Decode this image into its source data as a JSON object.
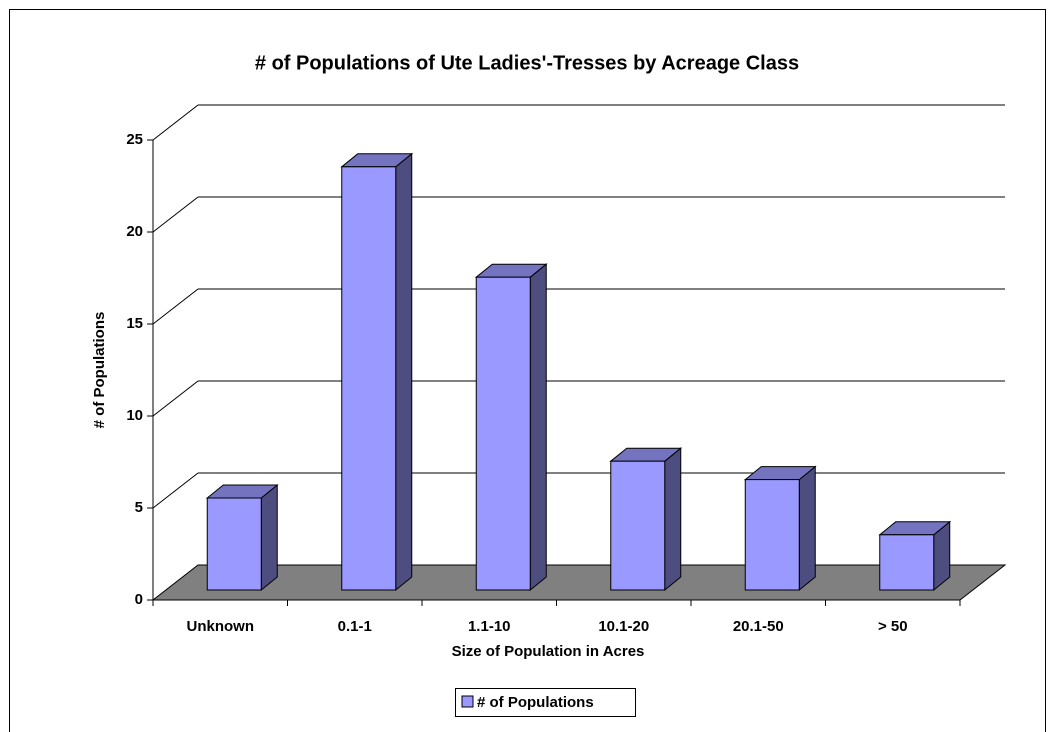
{
  "chart_data": {
    "type": "bar3d",
    "title": "# of Populations of Ute Ladies'-Tresses by Acreage Class",
    "x_label": "Size of Population in Acres",
    "y_label": "# of Populations",
    "categories": [
      "Unknown",
      "0.1-1",
      "1.1-10",
      "10.1-20",
      "20.1-50",
      "> 50"
    ],
    "series": [
      {
        "name": "# of Populations",
        "color": "#9999ff",
        "values": [
          5,
          23,
          17,
          7,
          6,
          3
        ]
      }
    ],
    "ylim": [
      0,
      25
    ],
    "yticks": [
      0,
      5,
      10,
      15,
      20,
      25
    ],
    "grid": true,
    "legend": "bottom"
  }
}
